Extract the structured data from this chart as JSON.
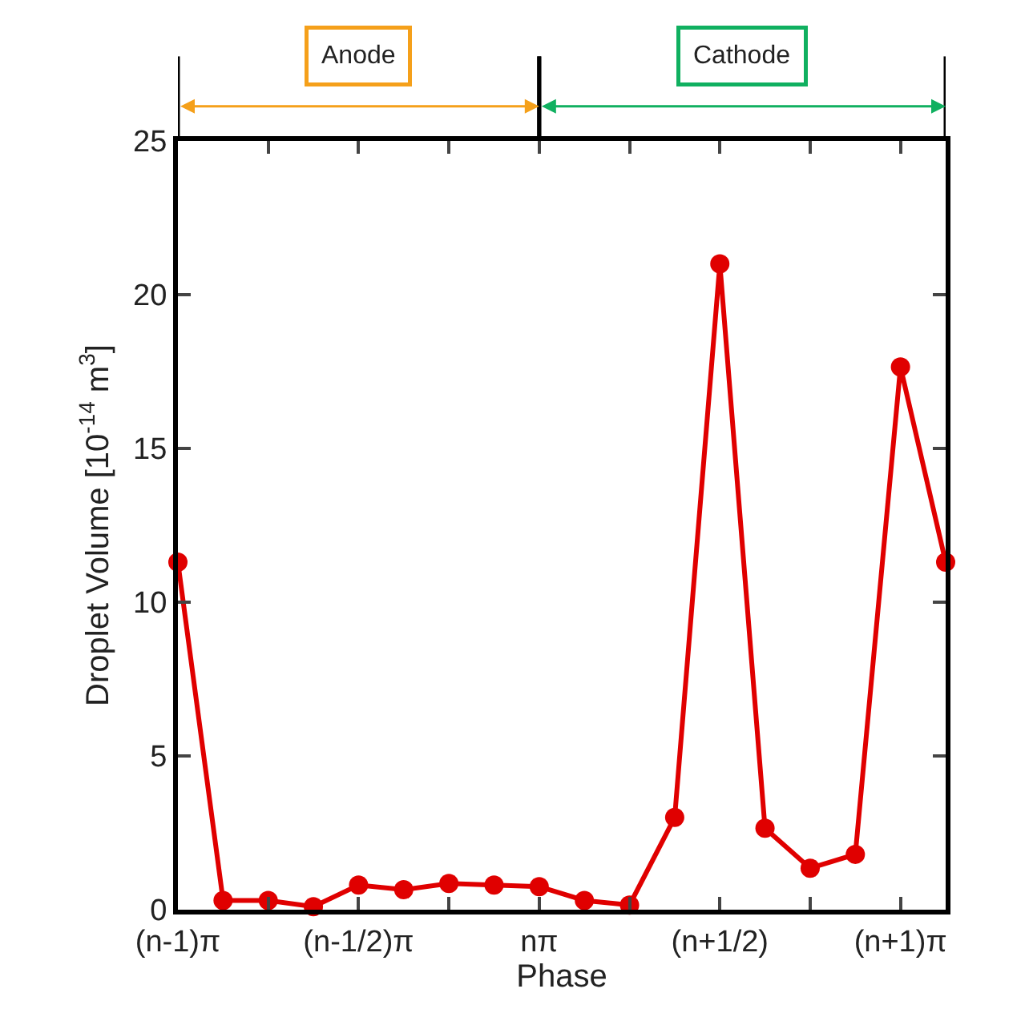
{
  "chart_data": {
    "type": "line",
    "xlabel": "Phase",
    "ylabel": "Droplet Volume [10$^{-14}$ m$^{3}$]",
    "categories": [
      "(n-1)π",
      null,
      null,
      null,
      "(n-1/2)π",
      null,
      null,
      null,
      "nπ",
      null,
      null,
      null,
      "(n+1/2)",
      null,
      null,
      null,
      "(n+1)π",
      null
    ],
    "series": [
      {
        "color": "#e00000",
        "values": [
          11.3,
          0.3,
          0.3,
          0.1,
          0.8,
          0.65,
          0.85,
          0.8,
          0.75,
          0.3,
          0.15,
          3.0,
          21.0,
          2.65,
          1.35,
          1.8,
          17.65,
          11.3
        ]
      }
    ],
    "ylim": [
      0,
      25
    ],
    "yticks": [
      0,
      5,
      10,
      15,
      20,
      25
    ],
    "annotations": [
      "Anode",
      "Cathode"
    ],
    "marker": "circle",
    "line_style": "solid"
  }
}
